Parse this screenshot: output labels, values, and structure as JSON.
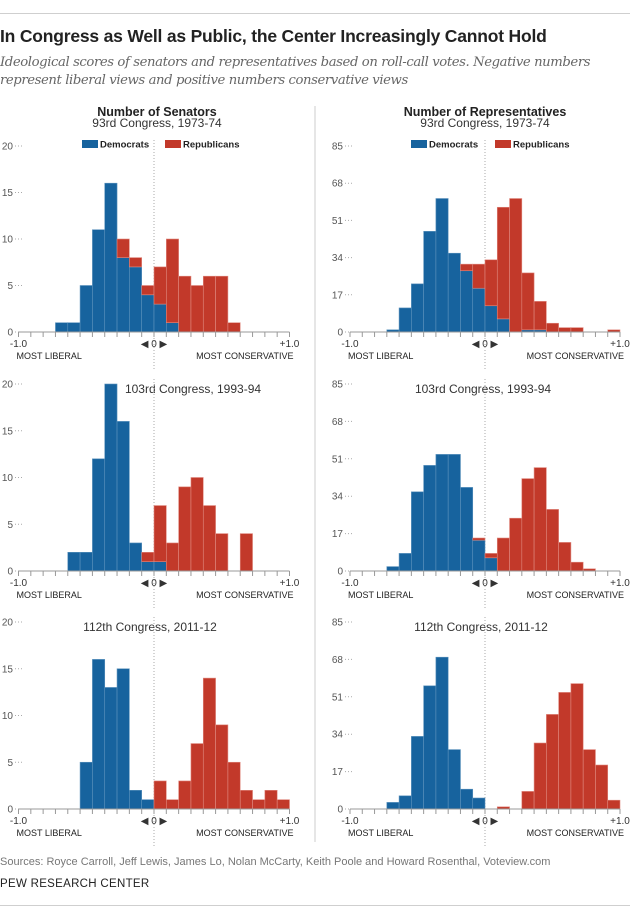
{
  "header": {
    "title": "In Congress as Well as Public, the Center Increasingly Cannot Hold",
    "subtitle": "Ideological scores of senators and representatives based on roll-call votes. Negative numbers represent liberal views and positive numbers conservative views"
  },
  "footer": {
    "sources": "Sources: Royce Carroll, Jeff Lewis, James Lo, Nolan McCarty, Keith Poole and Howard Rosenthal, Voteview.com",
    "org": "PEW RESEARCH CENTER"
  },
  "columns": {
    "senate": "Number of Senators",
    "house": "Number of Representatives"
  },
  "colors": {
    "democrats": "#17639e",
    "republicans": "#c2392a"
  },
  "chart_data": [
    {
      "type": "bar",
      "stacked": true,
      "title": "93rd Congress, 1973-74",
      "column": "senate",
      "legend": [
        "Democrats",
        "Republicans"
      ],
      "xlim": [
        -1,
        1
      ],
      "bins": 22,
      "ylim": [
        0,
        20
      ],
      "yticks": [
        "0",
        "5",
        "10",
        "15",
        "20"
      ],
      "xticks": [
        "-1.0",
        "◀ 0 ▶",
        "+1.0"
      ],
      "xcaps": [
        "MOST LIBERAL",
        "MOST CONSERVATIVE"
      ],
      "series": [
        {
          "name": "Democrats",
          "values": [
            0,
            0,
            0,
            1,
            1,
            5,
            11,
            16,
            8,
            7,
            4,
            3,
            1,
            0,
            0,
            0,
            0,
            0,
            0,
            0,
            0,
            0
          ]
        },
        {
          "name": "Republicans",
          "values": [
            0,
            0,
            0,
            0,
            0,
            0,
            0,
            0,
            2,
            1,
            1,
            4,
            9,
            6,
            5,
            6,
            6,
            1,
            0,
            0,
            0,
            0
          ]
        }
      ]
    },
    {
      "type": "bar",
      "stacked": true,
      "title": "93rd Congress, 1973-74",
      "column": "house",
      "legend": [
        "Democrats",
        "Republicans"
      ],
      "xlim": [
        -1,
        1
      ],
      "bins": 22,
      "ylim": [
        0,
        85
      ],
      "yticks": [
        "0",
        "17",
        "34",
        "51",
        "68",
        "85"
      ],
      "xticks": [
        "-1.0",
        "◀ 0 ▶",
        "+1.0"
      ],
      "xcaps": [
        "MOST LIBERAL",
        "MOST CONSERVATIVE"
      ],
      "series": [
        {
          "name": "Democrats",
          "values": [
            0,
            0,
            0,
            1,
            11,
            22,
            46,
            61,
            36,
            28,
            20,
            12,
            6,
            0,
            1,
            1,
            0,
            0,
            0,
            0,
            0,
            0
          ]
        },
        {
          "name": "Republicans",
          "values": [
            0,
            0,
            0,
            0,
            0,
            0,
            0,
            0,
            0,
            3,
            11,
            21,
            51,
            61,
            26,
            13,
            4,
            2,
            2,
            0,
            0,
            1
          ]
        }
      ]
    },
    {
      "type": "bar",
      "stacked": true,
      "title": "103rd Congress, 1993-94",
      "column": "senate",
      "xlim": [
        -1,
        1
      ],
      "bins": 22,
      "ylim": [
        0,
        20
      ],
      "yticks": [
        "0",
        "5",
        "10",
        "15",
        "20"
      ],
      "xticks": [
        "-1.0",
        "◀ 0 ▶",
        "+1.0"
      ],
      "xcaps": [
        "MOST LIBERAL",
        "MOST CONSERVATIVE"
      ],
      "series": [
        {
          "name": "Democrats",
          "values": [
            0,
            0,
            0,
            0,
            2,
            2,
            12,
            20,
            16,
            3,
            1,
            1,
            0,
            0,
            0,
            0,
            0,
            0,
            0,
            0,
            0,
            0
          ]
        },
        {
          "name": "Republicans",
          "values": [
            0,
            0,
            0,
            0,
            0,
            0,
            0,
            0,
            0,
            0,
            1,
            6,
            3,
            9,
            10,
            7,
            4,
            0,
            4,
            0,
            0,
            0
          ]
        }
      ]
    },
    {
      "type": "bar",
      "stacked": true,
      "title": "103rd Congress, 1993-94",
      "column": "house",
      "xlim": [
        -1,
        1
      ],
      "bins": 22,
      "ylim": [
        0,
        85
      ],
      "yticks": [
        "0",
        "17",
        "34",
        "51",
        "68",
        "85"
      ],
      "xticks": [
        "-1.0",
        "◀ 0 ▶",
        "+1.0"
      ],
      "xcaps": [
        "MOST LIBERAL",
        "MOST CONSERVATIVE"
      ],
      "series": [
        {
          "name": "Democrats",
          "values": [
            0,
            0,
            0,
            2,
            8,
            36,
            48,
            53,
            53,
            38,
            14,
            6,
            0,
            0,
            0,
            0,
            0,
            0,
            0,
            0,
            0,
            0
          ]
        },
        {
          "name": "Republicans",
          "values": [
            0,
            0,
            0,
            0,
            0,
            0,
            0,
            0,
            0,
            0,
            1,
            2,
            15,
            24,
            42,
            47,
            28,
            13,
            4,
            1,
            0,
            0
          ]
        }
      ]
    },
    {
      "type": "bar",
      "stacked": true,
      "title": "112th Congress, 2011-12",
      "column": "senate",
      "xlim": [
        -1,
        1
      ],
      "bins": 22,
      "ylim": [
        0,
        20
      ],
      "yticks": [
        "0",
        "5",
        "10",
        "15",
        "20"
      ],
      "xticks": [
        "-1.0",
        "◀ 0 ▶",
        "+1.0"
      ],
      "xcaps": [
        "MOST LIBERAL",
        "MOST CONSERVATIVE"
      ],
      "series": [
        {
          "name": "Democrats",
          "values": [
            0,
            0,
            0,
            0,
            0,
            5,
            16,
            13,
            15,
            2,
            1,
            0,
            0,
            0,
            0,
            0,
            0,
            0,
            0,
            0,
            0,
            0
          ]
        },
        {
          "name": "Republicans",
          "values": [
            0,
            0,
            0,
            0,
            0,
            0,
            0,
            0,
            0,
            0,
            0,
            3,
            1,
            3,
            7,
            14,
            9,
            5,
            2,
            1,
            2,
            1
          ]
        }
      ]
    },
    {
      "type": "bar",
      "stacked": true,
      "title": "112th Congress, 2011-12",
      "column": "house",
      "xlim": [
        -1,
        1
      ],
      "bins": 22,
      "ylim": [
        0,
        85
      ],
      "yticks": [
        "0",
        "17",
        "34",
        "51",
        "68",
        "85"
      ],
      "xticks": [
        "-1.0",
        "◀ 0 ▶",
        "+1.0"
      ],
      "xcaps": [
        "MOST LIBERAL",
        "MOST CONSERVATIVE"
      ],
      "series": [
        {
          "name": "Democrats",
          "values": [
            0,
            0,
            0,
            3,
            6,
            33,
            56,
            69,
            27,
            9,
            5,
            0,
            0,
            0,
            0,
            0,
            0,
            0,
            0,
            0,
            0,
            0
          ]
        },
        {
          "name": "Republicans",
          "values": [
            0,
            0,
            0,
            0,
            0,
            0,
            0,
            0,
            0,
            0,
            0,
            0,
            1,
            0,
            8,
            30,
            43,
            53,
            57,
            27,
            20,
            4
          ]
        }
      ]
    }
  ]
}
